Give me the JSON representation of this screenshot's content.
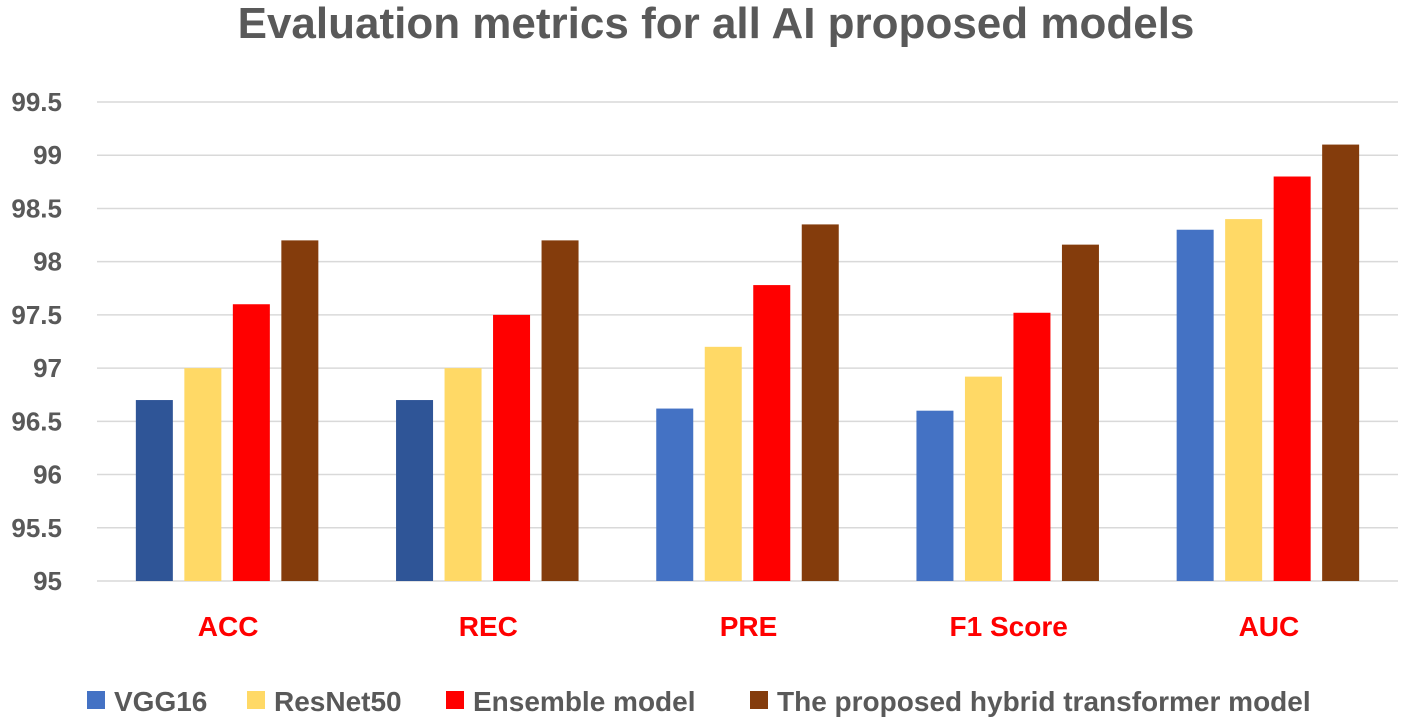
{
  "chart_data": {
    "type": "bar",
    "title": "Evaluation metrics for all AI proposed models",
    "xlabel": "",
    "ylabel": "",
    "categories": [
      "ACC",
      "REC",
      "PRE",
      "F1 Score",
      "AUC"
    ],
    "ylim": [
      95,
      99.5
    ],
    "yticks": [
      "95",
      "95.5",
      "96",
      "96.5",
      "97",
      "97.5",
      "98",
      "98.5",
      "99",
      "99.5"
    ],
    "grid": true,
    "legend_position": "bottom",
    "series": [
      {
        "name": "VGG16",
        "color": "#4472c4",
        "values": [
          96.7,
          96.7,
          96.62,
          96.6,
          98.3
        ]
      },
      {
        "name": "ResNet50",
        "color": "#ffd966",
        "values": [
          97.0,
          97.0,
          97.2,
          96.92,
          98.4
        ]
      },
      {
        "name": "Ensemble model",
        "color": "#ff0000",
        "values": [
          97.6,
          97.5,
          97.78,
          97.52,
          98.8
        ]
      },
      {
        "name": "The proposed hybrid transformer model",
        "color": "#843c0c",
        "values": [
          98.2,
          98.2,
          98.35,
          98.16,
          99.1
        ]
      }
    ],
    "bar_color_overrides": [
      {
        "series": 0,
        "category": 0,
        "color": "#2f5597"
      },
      {
        "series": 0,
        "category": 1,
        "color": "#2f5597"
      }
    ]
  }
}
